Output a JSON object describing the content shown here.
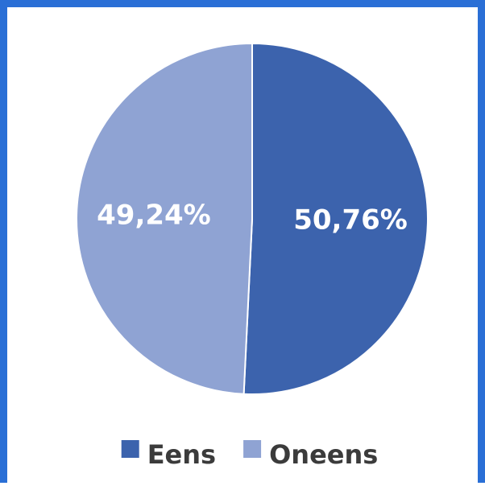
{
  "chart_data": {
    "type": "pie",
    "categories": [
      "Eens",
      "Oneens"
    ],
    "values": [
      50.76,
      49.24
    ],
    "labels": [
      "50,76%",
      "49,24%"
    ],
    "colors": [
      "#3c63ad",
      "#8fa3d3"
    ],
    "legend_position": "bottom",
    "start_angle_deg": 0,
    "direction": "clockwise"
  }
}
